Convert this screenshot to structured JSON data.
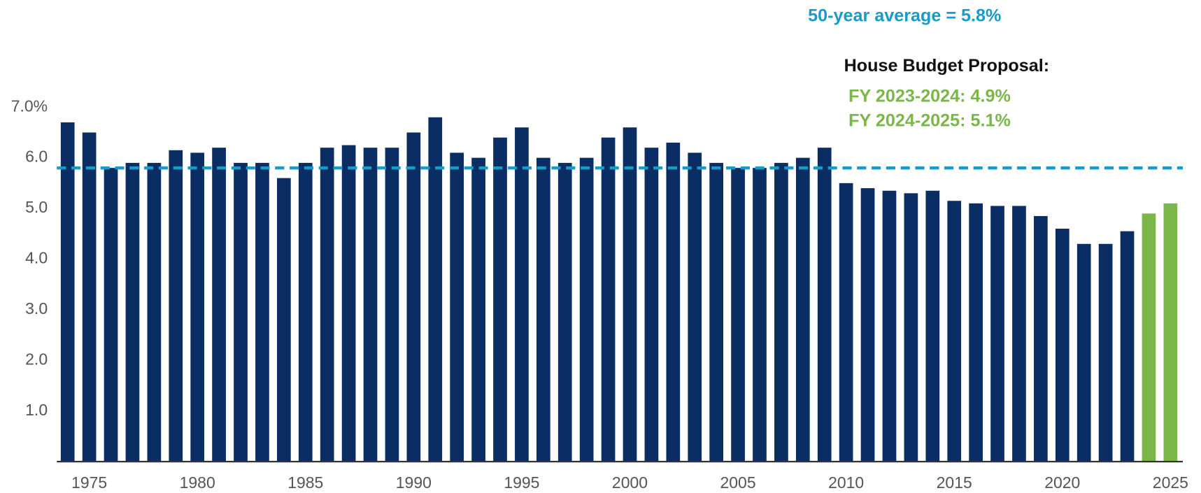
{
  "chart_data": {
    "type": "bar",
    "annotations": [
      "50-year average = 5.8%",
      "House Budget Proposal:",
      "FY 2023-2024: 4.9%",
      "FY 2024-2025: 5.1%"
    ],
    "average": 5.8,
    "average_color": "#1a9bc7",
    "categories": [
      null,
      1975,
      null,
      null,
      null,
      null,
      1980,
      null,
      null,
      null,
      null,
      1985,
      null,
      null,
      null,
      null,
      1990,
      null,
      null,
      null,
      null,
      1995,
      null,
      null,
      null,
      null,
      2000,
      null,
      null,
      null,
      null,
      2005,
      null,
      null,
      null,
      null,
      2010,
      null,
      null,
      null,
      null,
      2015,
      null,
      null,
      null,
      null,
      2020,
      null,
      null,
      null,
      null,
      2025
    ],
    "values": [
      6.7,
      6.5,
      5.8,
      5.9,
      5.9,
      6.15,
      6.1,
      6.2,
      5.9,
      5.9,
      5.6,
      5.9,
      6.2,
      6.25,
      6.2,
      6.2,
      6.5,
      6.8,
      6.1,
      6.0,
      6.4,
      6.6,
      6.0,
      5.9,
      6.0,
      6.4,
      6.6,
      6.2,
      6.3,
      6.1,
      5.9,
      5.8,
      5.8,
      5.9,
      6.0,
      6.2,
      5.5,
      5.4,
      5.35,
      5.3,
      5.35,
      5.15,
      5.1,
      5.05,
      5.05,
      4.85,
      4.6,
      4.3,
      4.3,
      4.55,
      4.9,
      5.1
    ],
    "colors": [
      "#0a2d63",
      "#0a2d63",
      "#0a2d63",
      "#0a2d63",
      "#0a2d63",
      "#0a2d63",
      "#0a2d63",
      "#0a2d63",
      "#0a2d63",
      "#0a2d63",
      "#0a2d63",
      "#0a2d63",
      "#0a2d63",
      "#0a2d63",
      "#0a2d63",
      "#0a2d63",
      "#0a2d63",
      "#0a2d63",
      "#0a2d63",
      "#0a2d63",
      "#0a2d63",
      "#0a2d63",
      "#0a2d63",
      "#0a2d63",
      "#0a2d63",
      "#0a2d63",
      "#0a2d63",
      "#0a2d63",
      "#0a2d63",
      "#0a2d63",
      "#0a2d63",
      "#0a2d63",
      "#0a2d63",
      "#0a2d63",
      "#0a2d63",
      "#0a2d63",
      "#0a2d63",
      "#0a2d63",
      "#0a2d63",
      "#0a2d63",
      "#0a2d63",
      "#0a2d63",
      "#0a2d63",
      "#0a2d63",
      "#0a2d63",
      "#0a2d63",
      "#0a2d63",
      "#0a2d63",
      "#0a2d63",
      "#0a2d63",
      "#7ab648",
      "#7ab648"
    ],
    "ylim": [
      0,
      7
    ],
    "yticks": [
      {
        "value": 1,
        "label": "1.0"
      },
      {
        "value": 2,
        "label": "2.0"
      },
      {
        "value": 3,
        "label": "3.0"
      },
      {
        "value": 4,
        "label": "4.0"
      },
      {
        "value": 5,
        "label": "5.0"
      },
      {
        "value": 6,
        "label": "6.0"
      },
      {
        "value": 7,
        "label": "7.0%"
      }
    ],
    "grid": false
  }
}
